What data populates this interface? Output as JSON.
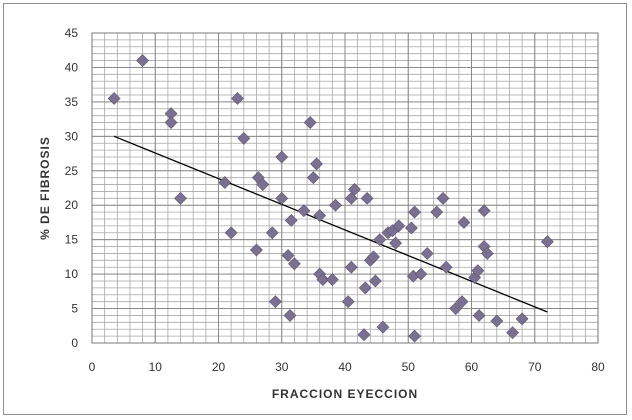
{
  "chart_data": {
    "type": "scatter",
    "title": "",
    "xlabel": "FRACCION EYECCION",
    "ylabel": "% DE FIBROSIS",
    "xlim": [
      0,
      80
    ],
    "ylim": [
      0,
      45
    ],
    "x_ticks": [
      "0",
      "10",
      "20",
      "30",
      "40",
      "50",
      "60",
      "70",
      "80"
    ],
    "y_ticks": [
      "0",
      "5",
      "10",
      "15",
      "20",
      "25",
      "30",
      "35",
      "40",
      "45"
    ],
    "grid": true,
    "minor_grid": true,
    "legend": "none",
    "marker": "diamond",
    "colors": {
      "marker": "#7a7090",
      "trendline": "#000000",
      "grid": "#a8a8a8",
      "background": "#ffffff"
    },
    "trendline": {
      "x": [
        3.5,
        72
      ],
      "y": [
        30,
        4.5
      ]
    },
    "series": [
      {
        "points": [
          [
            3.5,
            35.5
          ],
          [
            8,
            41
          ],
          [
            12.5,
            33.3
          ],
          [
            12.5,
            32
          ],
          [
            14,
            21
          ],
          [
            21,
            23.3
          ],
          [
            22,
            16
          ],
          [
            23,
            35.5
          ],
          [
            24,
            29.7
          ],
          [
            26,
            13.5
          ],
          [
            26.3,
            24
          ],
          [
            27,
            23
          ],
          [
            28.5,
            16
          ],
          [
            29,
            6
          ],
          [
            30,
            27
          ],
          [
            30,
            21
          ],
          [
            31,
            12.7
          ],
          [
            31.3,
            4
          ],
          [
            31.5,
            17.8
          ],
          [
            32,
            11.5
          ],
          [
            33.5,
            19.2
          ],
          [
            34.5,
            32
          ],
          [
            35,
            24
          ],
          [
            35.5,
            26
          ],
          [
            36,
            18.5
          ],
          [
            36,
            10
          ],
          [
            36.5,
            9.2
          ],
          [
            38,
            9.2
          ],
          [
            38.5,
            20
          ],
          [
            40.5,
            6
          ],
          [
            41,
            11
          ],
          [
            41,
            21
          ],
          [
            41.5,
            22.3
          ],
          [
            43,
            1.2
          ],
          [
            43.2,
            8
          ],
          [
            43.5,
            21
          ],
          [
            44,
            12
          ],
          [
            44.5,
            12.5
          ],
          [
            44.8,
            9
          ],
          [
            45.5,
            15
          ],
          [
            46,
            2.3
          ],
          [
            46.8,
            16
          ],
          [
            47.5,
            16.3
          ],
          [
            48,
            14.5
          ],
          [
            48.5,
            17
          ],
          [
            50.5,
            16.7
          ],
          [
            50.8,
            9.7
          ],
          [
            51,
            19
          ],
          [
            51,
            1
          ],
          [
            52,
            10
          ],
          [
            53,
            13
          ],
          [
            54.5,
            19
          ],
          [
            55.5,
            21
          ],
          [
            56,
            11
          ],
          [
            57.5,
            5
          ],
          [
            58.5,
            6
          ],
          [
            58.8,
            17.5
          ],
          [
            60.5,
            9.5
          ],
          [
            61,
            10.5
          ],
          [
            61.2,
            4
          ],
          [
            62,
            19.2
          ],
          [
            62,
            14
          ],
          [
            62.5,
            13
          ],
          [
            64,
            3.2
          ],
          [
            66.5,
            1.5
          ],
          [
            68,
            3.5
          ],
          [
            72,
            14.7
          ]
        ]
      }
    ]
  }
}
